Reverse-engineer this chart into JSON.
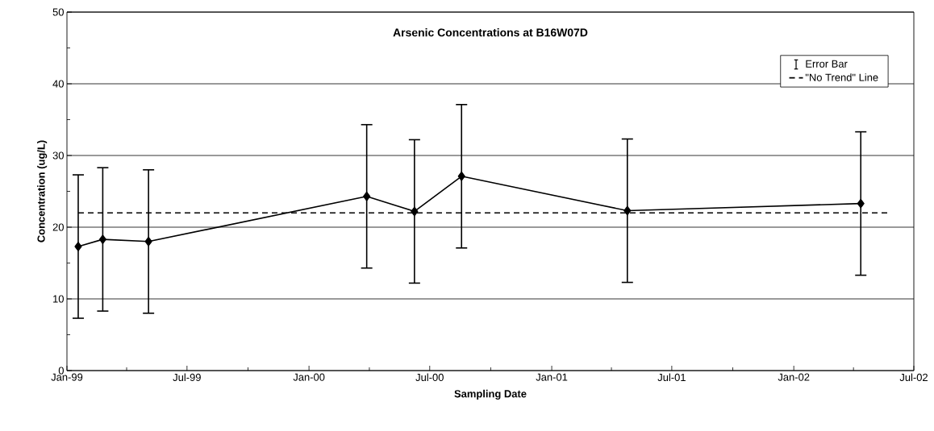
{
  "chart_data": {
    "type": "line",
    "title": "Arsenic Concentrations at B16W07D",
    "xlabel": "Sampling Date",
    "ylabel": "Concentration (ug/L)",
    "xlim": [
      "1999-01-01",
      "2002-07-01"
    ],
    "xticks": [
      {
        "value": "1999-01-01",
        "label": "Jan-99"
      },
      {
        "value": "1999-04-01",
        "label": null
      },
      {
        "value": "1999-07-01",
        "label": "Jul-99"
      },
      {
        "value": "1999-10-01",
        "label": null
      },
      {
        "value": "2000-01-01",
        "label": "Jan-00"
      },
      {
        "value": "2000-04-01",
        "label": null
      },
      {
        "value": "2000-07-01",
        "label": "Jul-00"
      },
      {
        "value": "2000-10-01",
        "label": null
      },
      {
        "value": "2001-01-01",
        "label": "Jan-01"
      },
      {
        "value": "2001-04-01",
        "label": null
      },
      {
        "value": "2001-07-01",
        "label": "Jul-01"
      },
      {
        "value": "2001-10-01",
        "label": null
      },
      {
        "value": "2002-01-01",
        "label": "Jan-02"
      },
      {
        "value": "2002-04-01",
        "label": null
      },
      {
        "value": "2002-07-01",
        "label": "Jul-02"
      }
    ],
    "ylim": [
      0,
      50
    ],
    "yticks": [
      0,
      {
        "value": 5,
        "label": null
      },
      10,
      {
        "value": 15,
        "label": null
      },
      20,
      {
        "value": 25,
        "label": null
      },
      30,
      {
        "value": 35,
        "label": null
      },
      40,
      {
        "value": 45,
        "label": null
      },
      50
    ],
    "grid": "y",
    "legend": "top right",
    "marker": "diamond",
    "line_style": "solid",
    "series": [
      {
        "name": "Error Bar",
        "color": "#000000",
        "x": [
          "1999-01-18",
          "1999-02-24",
          "1999-05-04",
          "2000-03-28",
          "2000-06-08",
          "2000-08-18",
          "2001-04-25",
          "2002-04-12"
        ],
        "values": [
          17.3,
          18.3,
          18.0,
          24.3,
          22.2,
          27.1,
          22.3,
          23.3
        ],
        "errors": [
          10,
          10,
          10,
          10,
          10,
          10,
          10,
          10
        ]
      },
      {
        "name": "\"No Trend\" Line",
        "type": "line",
        "color": "#000000",
        "marker": "none",
        "line_style": "dashed",
        "x": [
          "1999-01-18",
          "2002-05-23"
        ],
        "values": [
          22.0,
          22.0
        ]
      }
    ]
  }
}
